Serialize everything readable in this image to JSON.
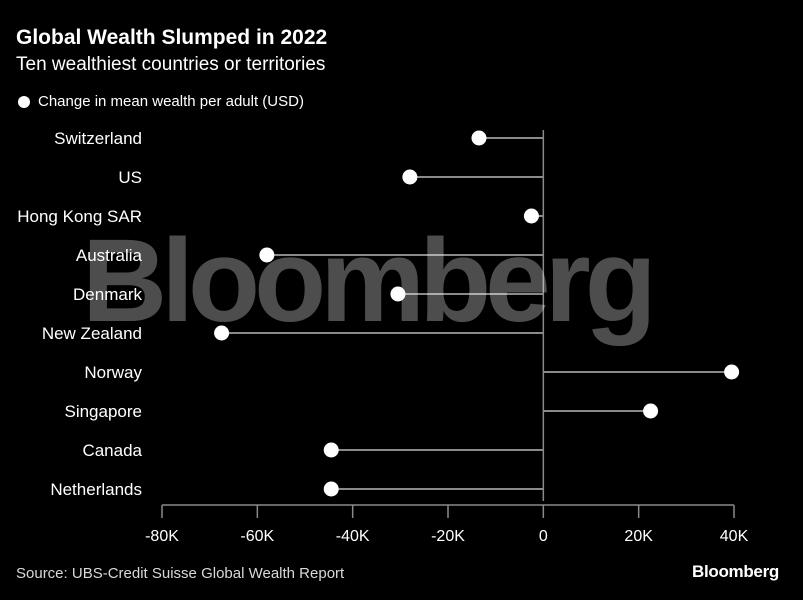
{
  "header": {
    "title": "Global Wealth Slumped in 2022",
    "subtitle": "Ten wealthiest countries or territories"
  },
  "footer": {
    "source": "Source: UBS-Credit Suisse Global Wealth Report",
    "brand": "Bloomberg"
  },
  "watermark": "Bloomberg",
  "colors": {
    "background": "#000000",
    "dot": "#ffffff",
    "stem": "#8a8a8a",
    "text": "#ffffff"
  },
  "chart_data": {
    "type": "scatter",
    "orientation": "horizontal-dot-stem",
    "title": "Global Wealth Slumped in 2022",
    "subtitle": "Ten wealthiest countries or territories",
    "xlabel": "",
    "ylabel": "",
    "legend": {
      "placement": "top-left",
      "entries": [
        "Change in mean wealth per adult (USD)"
      ]
    },
    "categories": [
      "Switzerland",
      "US",
      "Hong Kong SAR",
      "Australia",
      "Denmark",
      "New Zealand",
      "Norway",
      "Singapore",
      "Canada",
      "Netherlands"
    ],
    "series": [
      {
        "name": "Change in mean wealth per adult (USD)",
        "values": [
          -13500,
          -28000,
          -2500,
          -58000,
          -30500,
          -67500,
          39500,
          22500,
          -44500,
          -44500
        ]
      }
    ],
    "xlim": [
      -80000,
      40000
    ],
    "xticks": [
      -80000,
      -60000,
      -40000,
      -20000,
      0,
      20000,
      40000
    ],
    "xtick_labels": [
      "-80K",
      "-60K",
      "-40K",
      "-20K",
      "0",
      "20K",
      "40K"
    ],
    "grid": false
  }
}
